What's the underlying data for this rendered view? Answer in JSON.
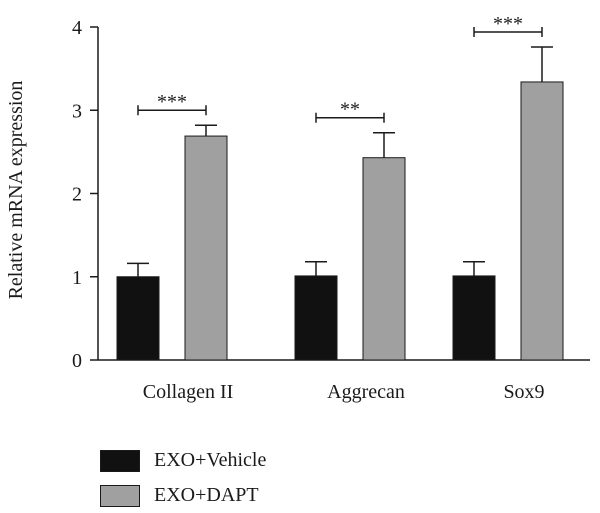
{
  "chart_data": {
    "type": "bar",
    "categories": [
      "Collagen II",
      "Aggrecan",
      "Sox9"
    ],
    "series": [
      {
        "name": "EXO+Vehicle",
        "color": "#111111",
        "values": [
          1.0,
          1.01,
          1.01
        ],
        "errors": [
          0.16,
          0.17,
          0.17
        ]
      },
      {
        "name": "EXO+DAPT",
        "color": "#a0a0a1",
        "values": [
          2.69,
          2.43,
          3.34
        ],
        "errors": [
          0.13,
          0.3,
          0.42
        ]
      }
    ],
    "significance": [
      "***",
      "**",
      "***"
    ],
    "ylabel": "Relative mRNA expression",
    "xlabel": "",
    "ylim": [
      0,
      4
    ],
    "yticks": [
      "0",
      "1",
      "2",
      "3",
      "4"
    ],
    "grid": false,
    "legend_position": "bottom-left"
  }
}
